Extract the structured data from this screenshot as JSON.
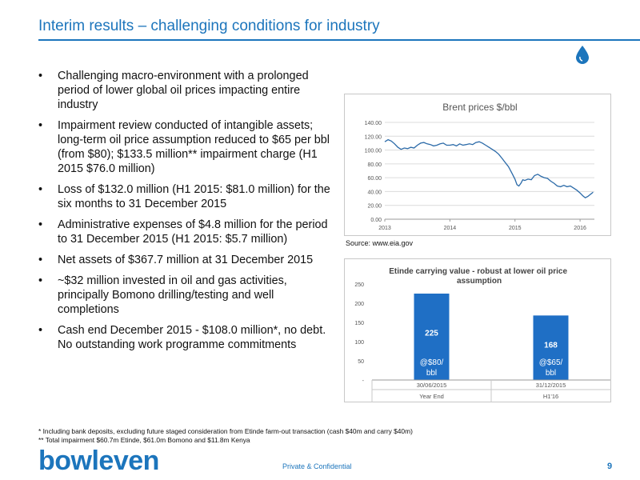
{
  "title": "Interim results – challenging conditions for industry",
  "bullets": [
    "Challenging macro-environment with a prolonged period of lower global oil prices impacting entire industry",
    "Impairment review conducted of intangible assets; long-term oil price assumption reduced to $65 per bbl (from $80); $133.5 million** impairment charge (H1 2015 $76.0 million)",
    "Loss of $132.0 million (H1 2015: $81.0 million) for the six months to 31 December 2015",
    "Administrative expenses of $4.8 million for the period to 31 December 2015 (H1 2015: $5.7 million)",
    "Net assets of $367.7 million at 31 December 2015",
    "~$32 million invested in oil and gas activities, principally Bomono drilling/testing and well completions",
    "Cash end December 2015 - $108.0 million*, no debt. No outstanding work programme commitments"
  ],
  "source_text": "Source: www.eia.gov",
  "footnotes": [
    "* Including bank deposits, excluding future staged consideration from Etinde farm-out transaction (cash $40m and carry $40m)",
    "** Total impairment $60.7m Etinde, $61.0m Bomono and $11.8m Kenya"
  ],
  "footer": {
    "logo": "bowleven",
    "confidential": "Private & Confidential",
    "page": "9"
  },
  "colors": {
    "accent": "#1c75bc",
    "bar": "#1f6fc5",
    "line": "#2b6aa8"
  },
  "chart_data": [
    {
      "type": "line",
      "title": "Brent prices $/bbl",
      "xlabel": "",
      "ylabel": "",
      "ylim": [
        0,
        140
      ],
      "y_ticks": [
        "0.00",
        "20.00",
        "40.00",
        "60.00",
        "80.00",
        "100.00",
        "120.00",
        "140.00"
      ],
      "x_ticks": [
        "2013",
        "2014",
        "2015",
        "2016"
      ],
      "xlim": [
        2013.0,
        2016.22
      ],
      "grid": true,
      "series": [
        {
          "x": [
            2013.0,
            2013.05,
            2013.1,
            2013.15,
            2013.2,
            2013.25,
            2013.3,
            2013.35,
            2013.4,
            2013.45,
            2013.5,
            2013.55,
            2013.6,
            2013.65,
            2013.7,
            2013.75,
            2013.8,
            2013.85,
            2013.9,
            2013.95,
            2014.0,
            2014.05,
            2014.1,
            2014.15,
            2014.2,
            2014.25,
            2014.3,
            2014.35,
            2014.4,
            2014.45,
            2014.5,
            2014.55,
            2014.6,
            2014.65,
            2014.7,
            2014.75,
            2014.8,
            2014.85,
            2014.9,
            2014.95,
            2015.0,
            2015.03,
            2015.06,
            2015.09,
            2015.12,
            2015.15,
            2015.2,
            2015.25,
            2015.3,
            2015.35,
            2015.4,
            2015.45,
            2015.5,
            2015.55,
            2015.6,
            2015.65,
            2015.7,
            2015.75,
            2015.8,
            2015.85,
            2015.9,
            2015.95,
            2016.0,
            2016.04,
            2016.08,
            2016.12,
            2016.16,
            2016.2
          ],
          "y": [
            112,
            115,
            113,
            109,
            104,
            101,
            103,
            102,
            104,
            103,
            107,
            110,
            111,
            109,
            108,
            106,
            107,
            109,
            110,
            107,
            107,
            108,
            106,
            109,
            107,
            108,
            109,
            108,
            111,
            112,
            110,
            107,
            104,
            101,
            98,
            94,
            88,
            82,
            76,
            67,
            58,
            50,
            48,
            52,
            57,
            56,
            58,
            57,
            63,
            65,
            62,
            60,
            59,
            55,
            52,
            48,
            47,
            49,
            47,
            48,
            45,
            42,
            38,
            34,
            31,
            33,
            36,
            39
          ]
        }
      ]
    },
    {
      "type": "bar",
      "title": "Etinde carrying value - robust at lower oil price assumption",
      "ylim": [
        0,
        250
      ],
      "y_ticks": [
        "-",
        "50",
        "100",
        "150",
        "200",
        "250"
      ],
      "categories": [
        "30/06/2015",
        "31/12/2015"
      ],
      "category_groups": [
        "Year End",
        "H1'16"
      ],
      "values": [
        225,
        168
      ],
      "bar_labels": [
        "@$80/ bbl",
        "@$65/ bbl"
      ],
      "grid": false
    }
  ]
}
